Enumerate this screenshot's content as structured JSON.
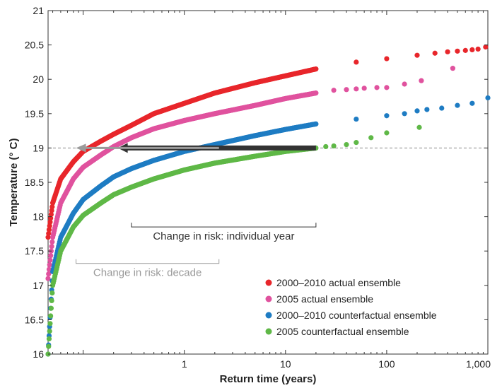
{
  "chart_data": {
    "type": "scatter",
    "title": "",
    "xlabel": "Return time (years)",
    "ylabel": "Temperature (° C)",
    "xscale": "log",
    "xlim": [
      0.045,
      1000
    ],
    "ylim": [
      16,
      21
    ],
    "x_ticks": [
      {
        "value": 1,
        "label": "1"
      },
      {
        "value": 10,
        "label": "10"
      },
      {
        "value": 100,
        "label": "100"
      },
      {
        "value": 1000,
        "label": "1,000"
      }
    ],
    "y_ticks": [
      {
        "value": 16,
        "label": "16"
      },
      {
        "value": 16.5,
        "label": "16.5"
      },
      {
        "value": 17,
        "label": "17"
      },
      {
        "value": 17.5,
        "label": "17.5"
      },
      {
        "value": 18,
        "label": "18"
      },
      {
        "value": 18.5,
        "label": "18.5"
      },
      {
        "value": 19,
        "label": "19"
      },
      {
        "value": 19.5,
        "label": "19.5"
      },
      {
        "value": 20,
        "label": "20"
      },
      {
        "value": 20.5,
        "label": "20.5"
      },
      {
        "value": 21,
        "label": "21"
      }
    ],
    "grid": false,
    "threshold_line": {
      "y": 19,
      "style": "dashed",
      "color": "#888888"
    },
    "legend_position": "bottom-right",
    "series": [
      {
        "name": "2000–2010 actual ensemble",
        "color": "#e8262b",
        "x": [
          0.045,
          0.05,
          0.06,
          0.08,
          0.1,
          0.15,
          0.2,
          0.3,
          0.5,
          1,
          2,
          5,
          10,
          20,
          50,
          100,
          200,
          300,
          400,
          500,
          600,
          700,
          800,
          950
        ],
        "y": [
          17.7,
          18.2,
          18.55,
          18.8,
          18.95,
          19.1,
          19.2,
          19.33,
          19.5,
          19.65,
          19.8,
          19.95,
          20.05,
          20.15,
          20.25,
          20.3,
          20.35,
          20.38,
          20.4,
          20.41,
          20.42,
          20.43,
          20.44,
          20.47
        ]
      },
      {
        "name": "2005 actual ensemble",
        "color": "#e0529e",
        "x": [
          0.045,
          0.05,
          0.06,
          0.08,
          0.1,
          0.15,
          0.2,
          0.3,
          0.5,
          1,
          2,
          5,
          10,
          20,
          30,
          40,
          50,
          60,
          80,
          100,
          150,
          220,
          450
        ],
        "y": [
          17.1,
          17.7,
          18.2,
          18.55,
          18.72,
          18.9,
          19.02,
          19.15,
          19.28,
          19.4,
          19.5,
          19.62,
          19.72,
          19.8,
          19.84,
          19.85,
          19.86,
          19.87,
          19.88,
          19.88,
          19.93,
          19.98,
          20.16
        ]
      },
      {
        "name": "2000–2010 counterfactual ensemble",
        "color": "#1e7cc3",
        "x": [
          0.045,
          0.05,
          0.06,
          0.08,
          0.1,
          0.15,
          0.2,
          0.3,
          0.5,
          1,
          2,
          5,
          10,
          20,
          50,
          100,
          150,
          200,
          250,
          350,
          500,
          700,
          1000
        ],
        "y": [
          16.0,
          17.2,
          17.7,
          18.05,
          18.25,
          18.45,
          18.58,
          18.7,
          18.82,
          18.95,
          19.05,
          19.18,
          19.27,
          19.35,
          19.42,
          19.47,
          19.5,
          19.54,
          19.56,
          19.58,
          19.62,
          19.65,
          19.73
        ]
      },
      {
        "name": "2005 counterfactual ensemble",
        "color": "#5fb847",
        "x": [
          0.045,
          0.05,
          0.06,
          0.08,
          0.1,
          0.15,
          0.2,
          0.3,
          0.5,
          1,
          2,
          5,
          10,
          20,
          25,
          30,
          40,
          50,
          70,
          100,
          210
        ],
        "y": [
          16.0,
          17.0,
          17.5,
          17.85,
          18.02,
          18.2,
          18.32,
          18.43,
          18.55,
          18.68,
          18.78,
          18.88,
          18.95,
          19.0,
          19.02,
          19.03,
          19.05,
          19.08,
          19.15,
          19.22,
          19.3
        ]
      }
    ],
    "annotations": [
      {
        "label": "Change in risk: individual year",
        "color": "#333333",
        "arrow_from_x": 20,
        "arrow_to_x": 0.22,
        "y": 19,
        "bracket_x": [
          0.3,
          20
        ],
        "bracket_y": 17.85
      },
      {
        "label": "Change in risk: decade",
        "color": "#9a9a9a",
        "arrow_from_x": 2.2,
        "arrow_to_x": 0.085,
        "y": 19,
        "bracket_x": [
          0.085,
          2.2
        ],
        "bracket_y": 17.32
      }
    ]
  }
}
